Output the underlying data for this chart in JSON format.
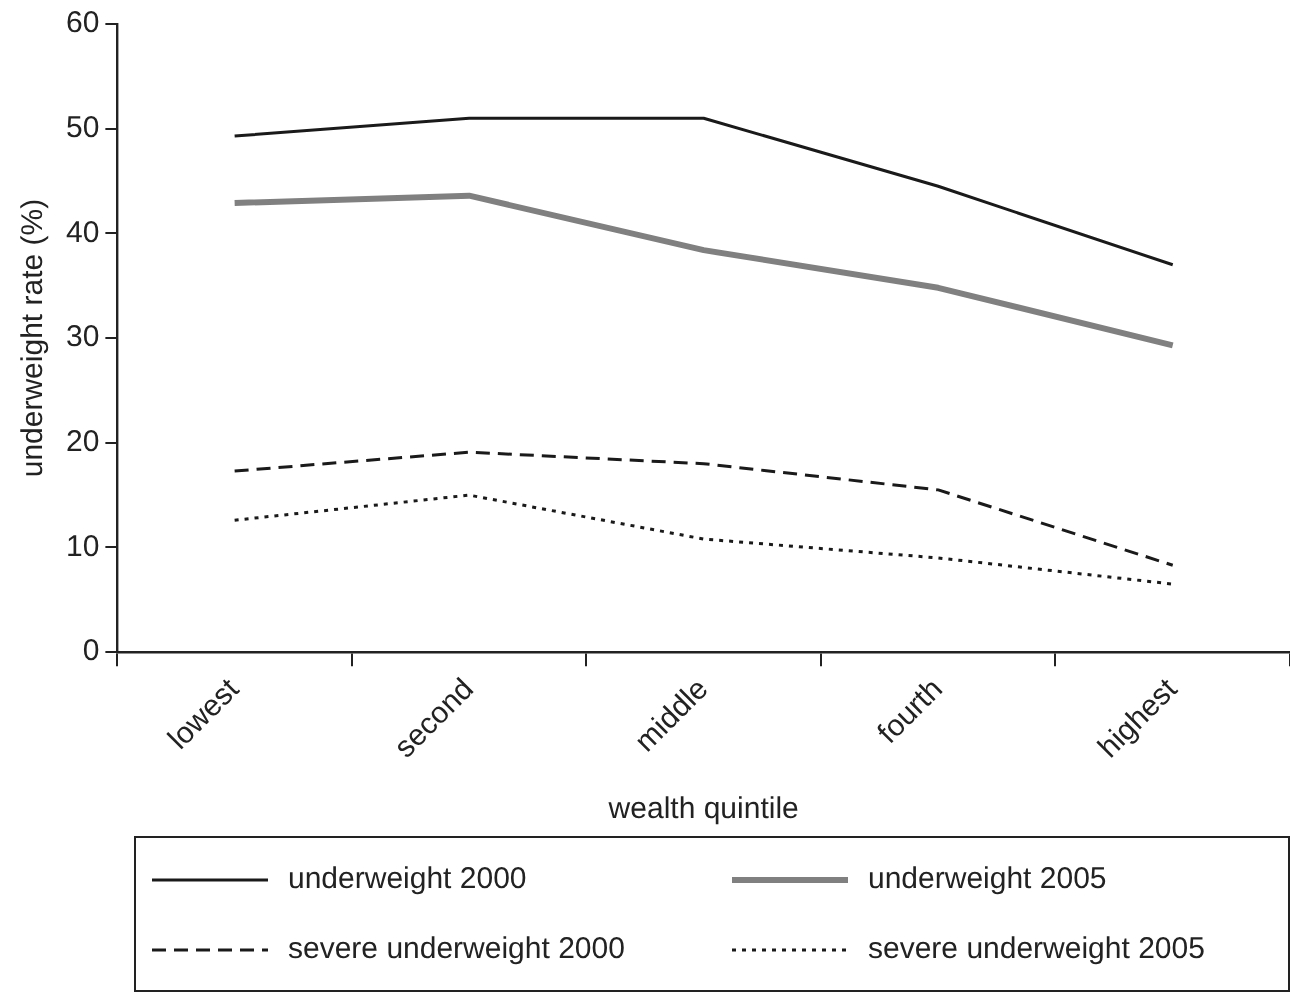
{
  "chart_data": {
    "type": "line",
    "xlabel": "wealth quintile",
    "ylabel": "underweight rate (%)",
    "categories": [
      "lowest",
      "second",
      "middle",
      "fourth",
      "highest"
    ],
    "series": [
      {
        "name": "underweight 2000",
        "color": "#1a1a1a",
        "line_style": "solid",
        "values": [
          49.3,
          51,
          51,
          44.5,
          37
        ]
      },
      {
        "name": "underweight 2005",
        "color": "#808080",
        "line_style": "solid",
        "values": [
          42.9,
          43.6,
          38.4,
          34.8,
          29.3
        ]
      },
      {
        "name": "severe underweight 2000",
        "color": "#1a1a1a",
        "line_style": "dashed",
        "values": [
          17.3,
          19.1,
          18,
          15.5,
          8.3
        ]
      },
      {
        "name": "severe underweight 2005",
        "color": "#1a1a1a",
        "line_style": "dotted",
        "values": [
          12.6,
          15,
          10.8,
          9,
          6.5
        ]
      }
    ],
    "ylim": [
      0,
      60
    ],
    "yticks": [
      0,
      10,
      20,
      30,
      40,
      50,
      60
    ],
    "grid": false,
    "legend": "bottom",
    "marker": "none"
  }
}
